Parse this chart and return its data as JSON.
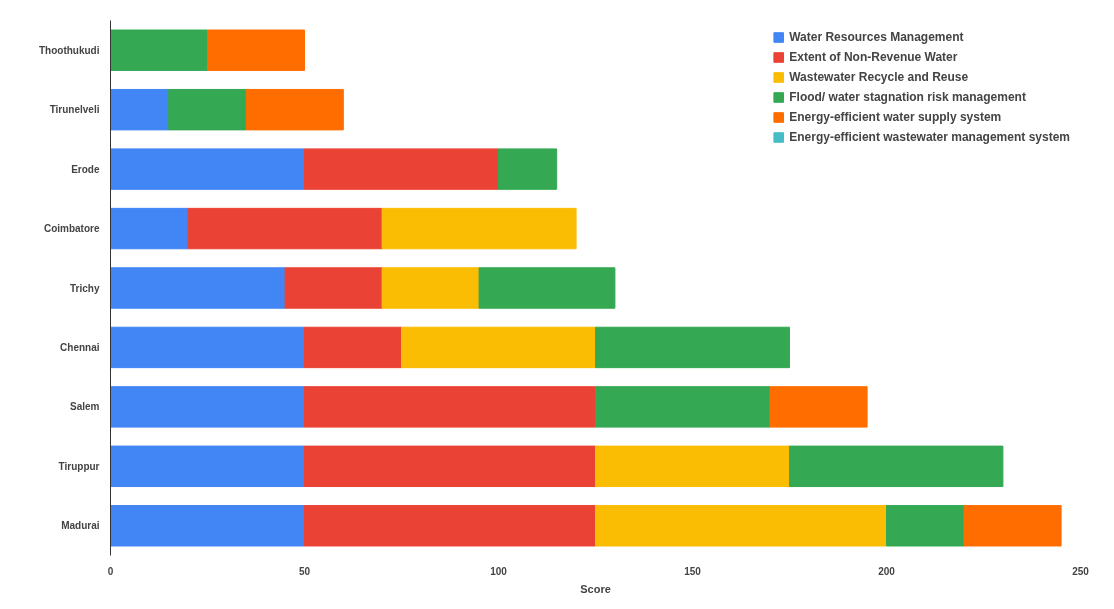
{
  "chart_data": {
    "type": "bar",
    "orientation": "horizontal",
    "stacked": true,
    "xlabel": "Score",
    "categories": [
      "Thoothukudi",
      "Tirunelveli",
      "Erode",
      "Coimbatore",
      "Trichy",
      "Chennai",
      "Salem",
      "Tiruppur",
      "Madurai"
    ],
    "series": [
      {
        "name": "Water Resources Management",
        "color": "#4285f4",
        "values": [
          null,
          15,
          50,
          20,
          45,
          50,
          50,
          50,
          50
        ]
      },
      {
        "name": "Extent of Non-Revenue Water",
        "color": "#ea4335",
        "values": [
          null,
          null,
          50,
          50,
          25,
          25,
          75,
          75,
          75
        ]
      },
      {
        "name": "Wastewater Recycle and Reuse",
        "color": "#fbbc04",
        "values": [
          null,
          null,
          null,
          50,
          25,
          50,
          null,
          50,
          75
        ]
      },
      {
        "name": "Flood/ water stagnation risk management",
        "color": "#34a853",
        "values": [
          25,
          20,
          15,
          null,
          35,
          50,
          45,
          55,
          20
        ]
      },
      {
        "name": "Energy-efficient water supply system",
        "color": "#ff6d01",
        "values": [
          25,
          25,
          null,
          null,
          null,
          null,
          25,
          null,
          25
        ]
      },
      {
        "name": "Energy-efficient wastewater management system",
        "color": "#46bdc6",
        "values": [
          null,
          null,
          null,
          null,
          null,
          null,
          null,
          null,
          null
        ]
      }
    ],
    "xlim": [
      0,
      250
    ],
    "xticks": [
      0,
      50,
      100,
      150,
      200,
      250
    ],
    "grid": false,
    "legend": "top right"
  }
}
